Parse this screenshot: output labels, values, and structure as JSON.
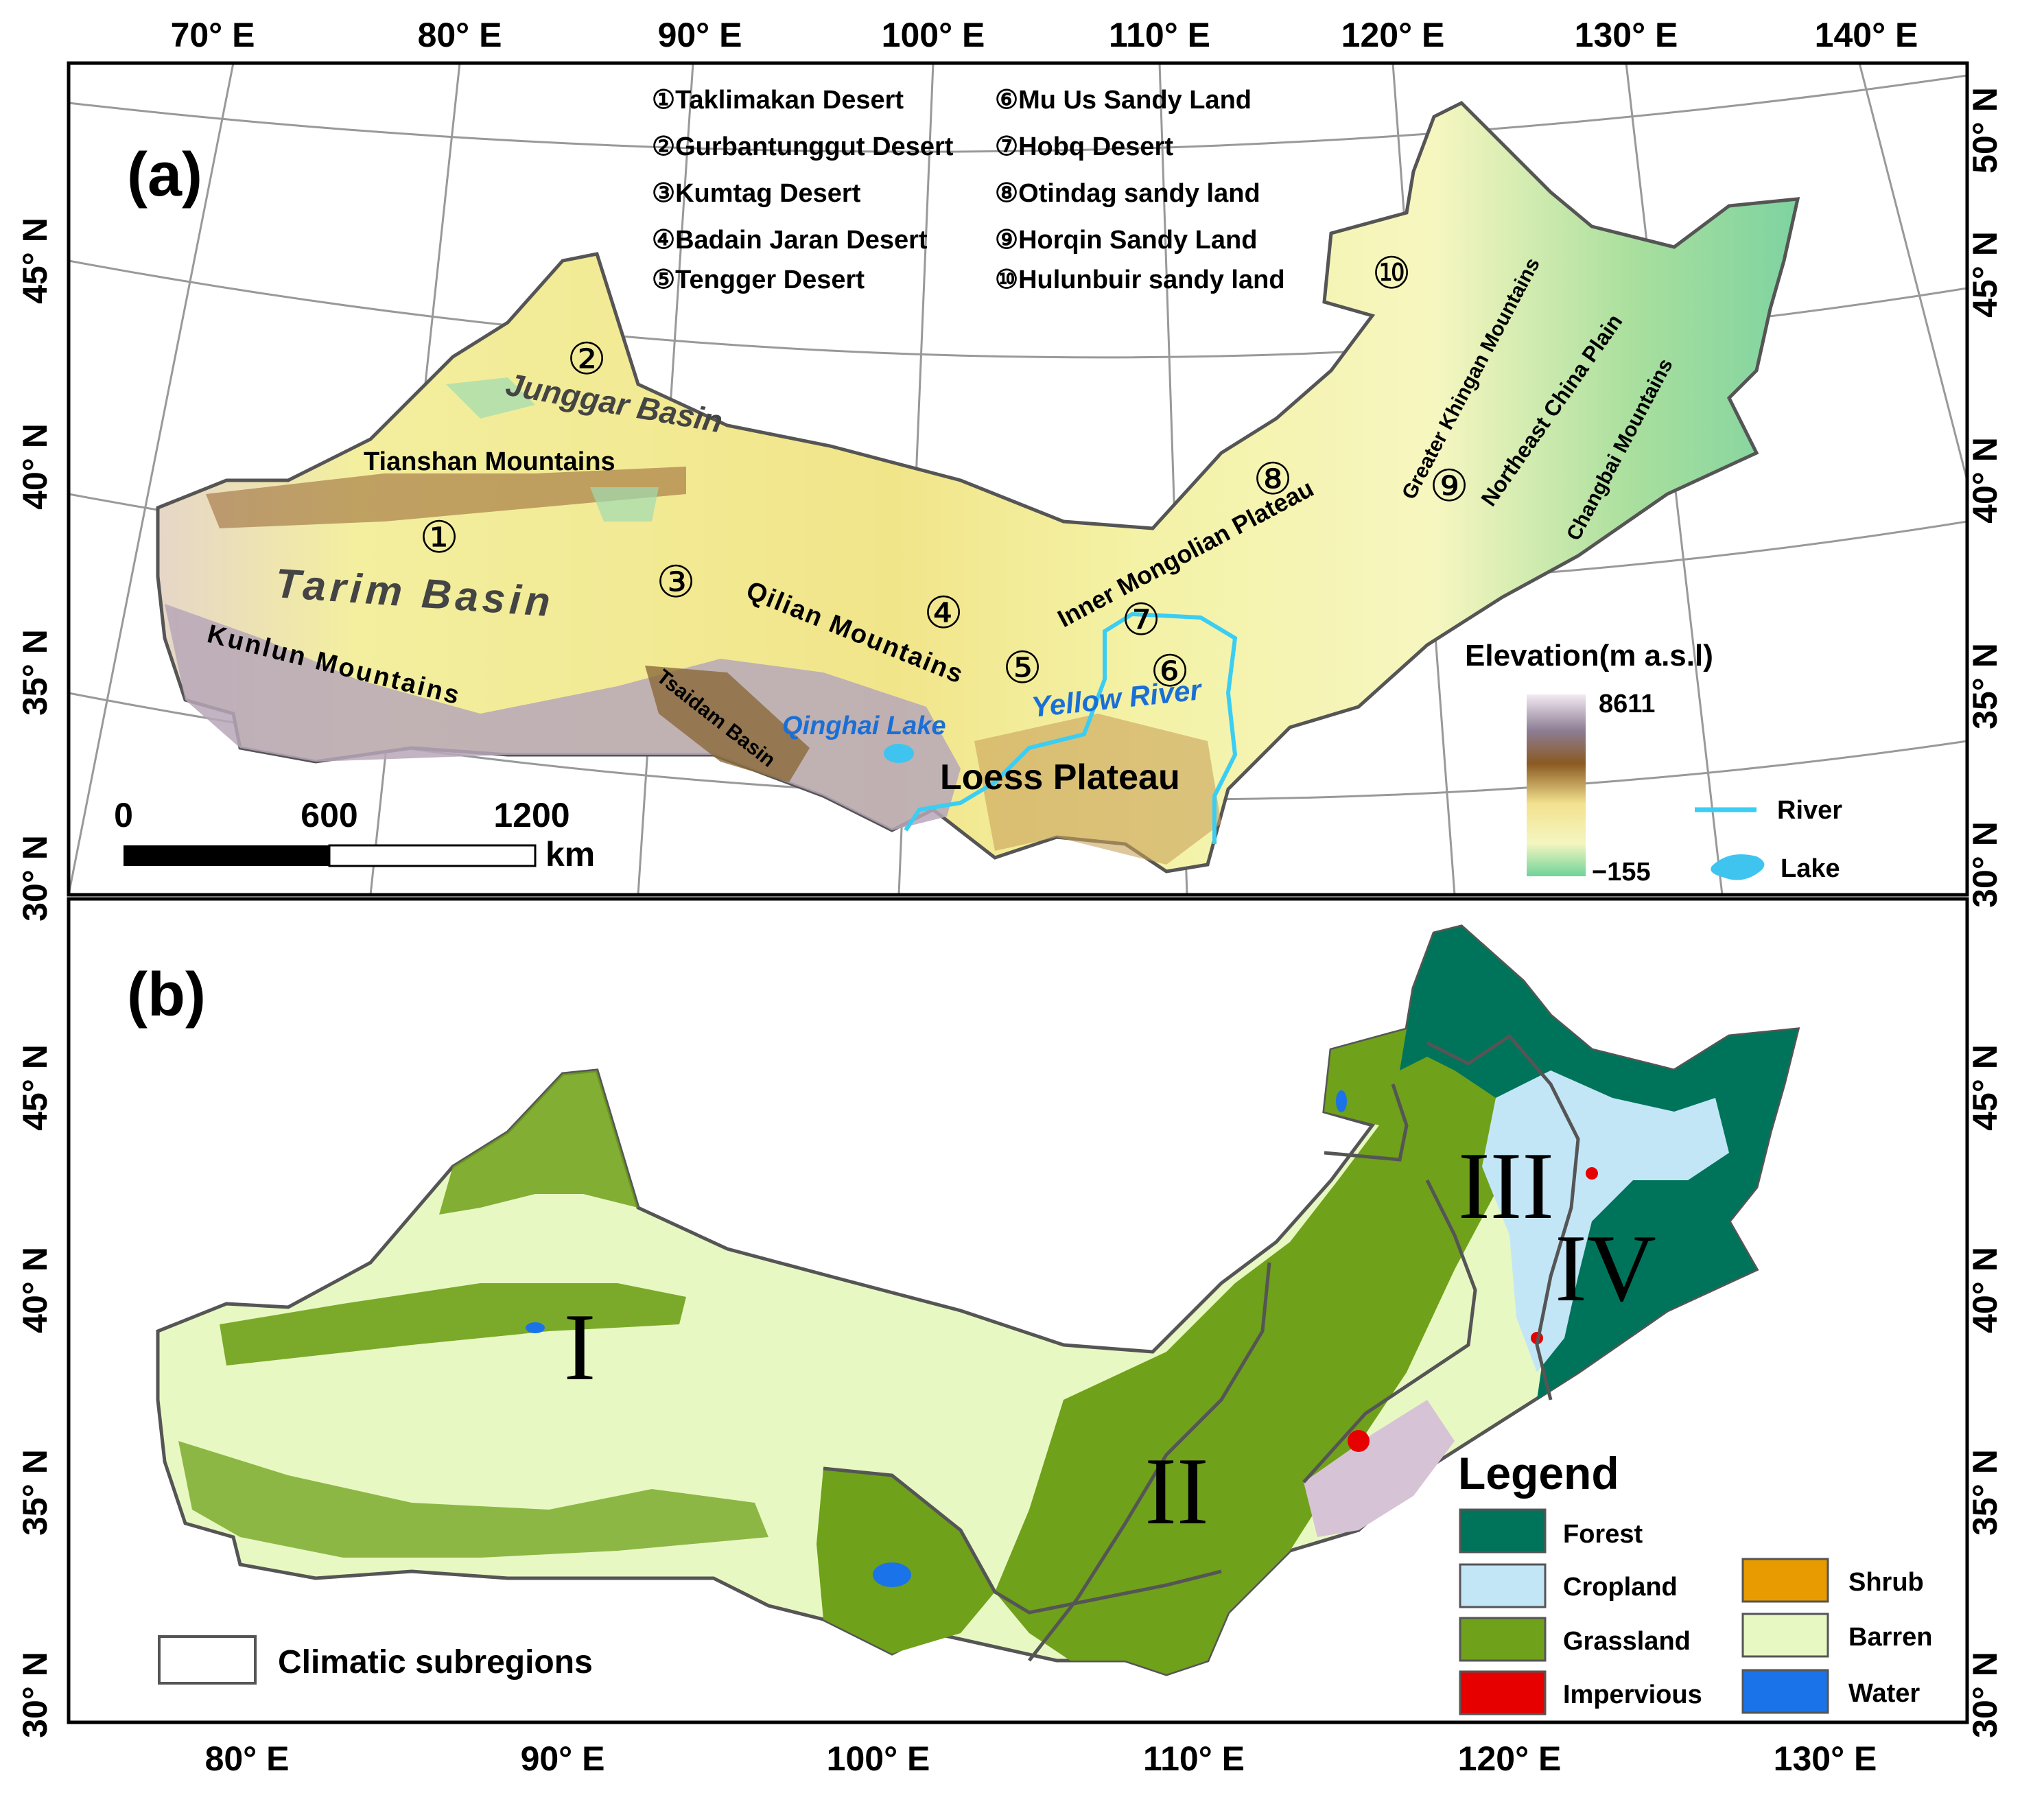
{
  "panel_a": {
    "label": "(a)",
    "top_ticks": [
      "70° E",
      "80° E",
      "90° E",
      "100° E",
      "110° E",
      "120° E",
      "130° E",
      "140° E"
    ],
    "left_ticks": [
      "45° N",
      "40° N",
      "35° N",
      "30° N"
    ],
    "right_ticks": [
      "50° N",
      "45° N",
      "40° N",
      "35° N",
      "30° N"
    ],
    "deserts_left": [
      "①Taklimakan Desert",
      "②Gurbantunggut Desert",
      "③Kumtag Desert",
      "④Badain Jaran Desert",
      "⑤Tengger Desert"
    ],
    "deserts_right": [
      "⑥Mu Us Sandy Land",
      "⑦Hobq Desert",
      "⑧Otindag sandy land",
      "⑨Horqin Sandy Land",
      "⑩Hulunbuir sandy land"
    ],
    "map_markers": [
      "①",
      "②",
      "③",
      "④",
      "⑤",
      "⑥",
      "⑦",
      "⑧",
      "⑨",
      "⑩"
    ],
    "place_labels": {
      "junggar": "Junggar Basin",
      "tianshan": "Tianshan Mountains",
      "tarim": "Tarim Basin",
      "kunlun": "Kunlun Mountains",
      "tsaidam": "Tsaidam Basin",
      "qilian": "Qilian Mountains",
      "qinghai": "Qinghai Lake",
      "loess": "Loess Plateau",
      "yellow": "Yellow River",
      "inner_mongolian": "Inner Mongolian Plateau",
      "greater_khingan": "Greater Khingan Mountains",
      "ne_plain": "Northeast China Plain",
      "changbai": "Changbai Mountains"
    },
    "scale_bar": {
      "labels": [
        "0",
        "600",
        "1200"
      ],
      "unit": "km"
    },
    "elevation_legend": {
      "title": "Elevation(m a.s.l)",
      "max": "8611",
      "min": "−155"
    },
    "line_legend": {
      "river": "River",
      "lake": "Lake"
    }
  },
  "panel_b": {
    "label": "(b)",
    "bottom_ticks": [
      "80° E",
      "90° E",
      "100° E",
      "110° E",
      "120° E",
      "130° E"
    ],
    "left_ticks": [
      "45° N",
      "40° N",
      "35° N",
      "30° N"
    ],
    "right_ticks": [
      "45° N",
      "40° N",
      "35° N",
      "30° N"
    ],
    "subregions": [
      "I",
      "II",
      "III",
      "IV"
    ],
    "subregion_legend": "Climatic subregions",
    "legend": {
      "title": "Legend",
      "items": [
        {
          "label": "Forest",
          "color": "#00745a"
        },
        {
          "label": "Cropland",
          "color": "#c3e6f7"
        },
        {
          "label": "Grassland",
          "color": "#6fa11a"
        },
        {
          "label": "Impervious",
          "color": "#e60000"
        },
        {
          "label": "Shrub",
          "color": "#e89b00"
        },
        {
          "label": "Barren",
          "color": "#e8f8c3"
        },
        {
          "label": "Water",
          "color": "#1a73e8"
        }
      ]
    }
  },
  "colors": {
    "elevation_ramp": [
      "#6fd39b",
      "#f4f6c0",
      "#f3e18f",
      "#8a5a22",
      "#8d7d94",
      "#f3eaf3"
    ],
    "river": "#3ccdf2",
    "lake": "#3fc4f0",
    "boundary": "#555555"
  }
}
